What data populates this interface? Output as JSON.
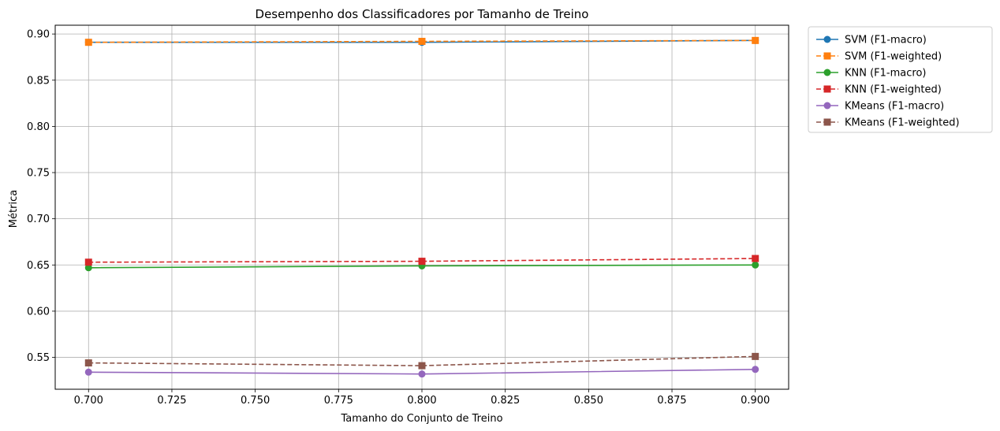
{
  "chart_data": {
    "type": "line",
    "title": "Desempenho dos Classificadores por Tamanho de Treino",
    "xlabel": "Tamanho do Conjunto de Treino",
    "ylabel": "Métrica",
    "x": [
      0.7,
      0.8,
      0.9
    ],
    "xlim": [
      0.69,
      0.91
    ],
    "ylim": [
      0.5155,
      0.9095
    ],
    "xticks": [
      "0.700",
      "0.725",
      "0.750",
      "0.775",
      "0.800",
      "0.825",
      "0.850",
      "0.875",
      "0.900"
    ],
    "xtick_values": [
      0.7,
      0.725,
      0.75,
      0.775,
      0.8,
      0.825,
      0.85,
      0.875,
      0.9
    ],
    "yticks": [
      "0.55",
      "0.60",
      "0.65",
      "0.70",
      "0.75",
      "0.80",
      "0.85",
      "0.90"
    ],
    "ytick_values": [
      0.55,
      0.6,
      0.65,
      0.7,
      0.75,
      0.8,
      0.85,
      0.9
    ],
    "grid": true,
    "legend_position": "outside-top-right",
    "series": [
      {
        "name": "SVM (F1-macro)",
        "values": [
          0.891,
          0.891,
          0.893
        ],
        "color": "#1f77b4",
        "style": "solid",
        "marker": "circle"
      },
      {
        "name": "SVM (F1-weighted)",
        "values": [
          0.891,
          0.892,
          0.893
        ],
        "color": "#ff7f0e",
        "style": "dashed",
        "marker": "square"
      },
      {
        "name": "KNN (F1-macro)",
        "values": [
          0.647,
          0.649,
          0.65
        ],
        "color": "#2ca02c",
        "style": "solid",
        "marker": "circle"
      },
      {
        "name": "KNN (F1-weighted)",
        "values": [
          0.653,
          0.654,
          0.657
        ],
        "color": "#d62728",
        "style": "dashed",
        "marker": "square"
      },
      {
        "name": "KMeans (F1-macro)",
        "values": [
          0.534,
          0.532,
          0.537
        ],
        "color": "#9467bd",
        "style": "solid",
        "marker": "circle"
      },
      {
        "name": "KMeans (F1-weighted)",
        "values": [
          0.544,
          0.541,
          0.551
        ],
        "color": "#8c564b",
        "style": "dashed",
        "marker": "square"
      }
    ]
  }
}
